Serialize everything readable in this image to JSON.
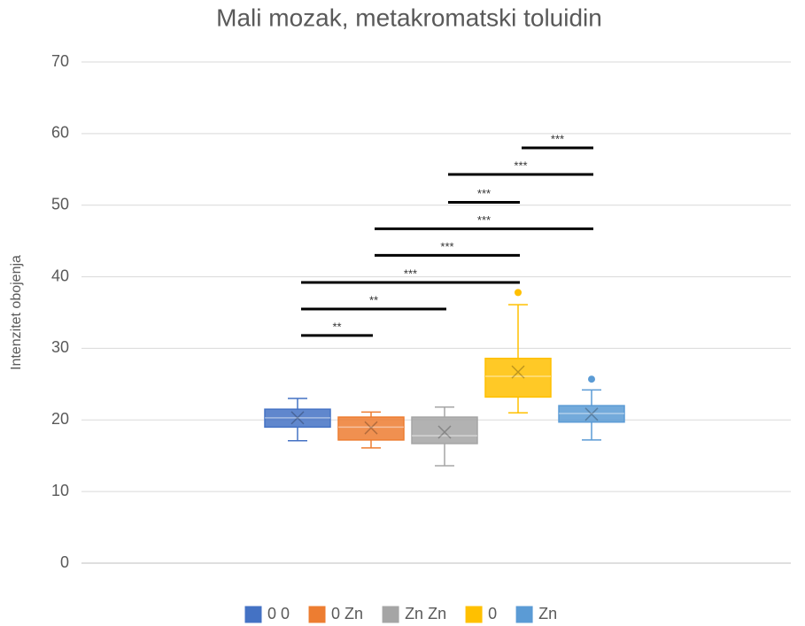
{
  "chart_data": {
    "type": "box",
    "title": "Mali mozak, metakromatski toluidin",
    "ylabel": "Intenzitet obojenja",
    "ylim": [
      0,
      70
    ],
    "yticks": [
      0,
      10,
      20,
      30,
      40,
      50,
      60,
      70
    ],
    "grid": true,
    "legend": "bottom",
    "series": [
      {
        "name": "0 0",
        "color": "#4472c4",
        "min": 17.1,
        "q1": 19.0,
        "median": 20.3,
        "q3": 21.5,
        "max": 23.0,
        "mean": 20.3,
        "outliers": []
      },
      {
        "name": "0 Zn",
        "color": "#ed7d31",
        "min": 16.1,
        "q1": 17.2,
        "median": 19.0,
        "q3": 20.4,
        "max": 21.1,
        "mean": 18.9,
        "outliers": []
      },
      {
        "name": "Zn Zn",
        "color": "#a5a5a5",
        "min": 13.6,
        "q1": 16.7,
        "median": 17.8,
        "q3": 20.4,
        "max": 21.8,
        "mean": 18.3,
        "outliers": []
      },
      {
        "name": "0",
        "color": "#ffc000",
        "min": 21.0,
        "q1": 23.2,
        "median": 26.1,
        "q3": 28.6,
        "max": 36.1,
        "mean": 26.7,
        "outliers": [
          37.8
        ]
      },
      {
        "name": "Zn",
        "color": "#5b9bd5",
        "min": 17.2,
        "q1": 19.7,
        "median": 20.9,
        "q3": 22.0,
        "max": 24.2,
        "mean": 20.8,
        "outliers": [
          25.7
        ]
      }
    ],
    "annotations": [
      {
        "text": "**",
        "from": 0,
        "to": 1,
        "y": 31.8
      },
      {
        "text": "**",
        "from": 0,
        "to": 2,
        "y": 35.5
      },
      {
        "text": "***",
        "from": 0,
        "to": 3,
        "y": 39.2
      },
      {
        "text": "***",
        "from": 1,
        "to": 3,
        "y": 43.0
      },
      {
        "text": "***",
        "from": 1,
        "to": 4,
        "y": 46.7
      },
      {
        "text": "***",
        "from": 2,
        "to": 3,
        "y": 50.4
      },
      {
        "text": "***",
        "from": 2,
        "to": 4,
        "y": 54.3
      },
      {
        "text": "***",
        "from": 3,
        "to": 4,
        "y": 58.0
      }
    ]
  }
}
